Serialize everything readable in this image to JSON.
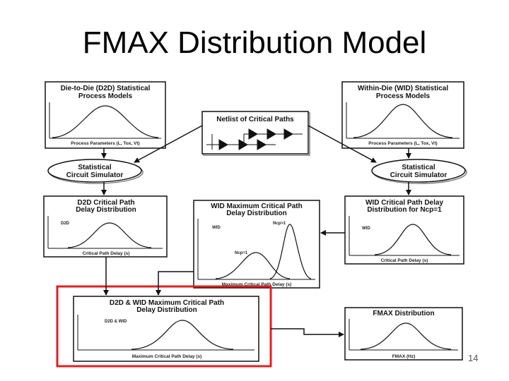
{
  "slide": {
    "title": "FMAX Distribution Model",
    "page_number": "14",
    "highlight_color": "#e02020"
  },
  "boxes": {
    "d2d_models": {
      "title1": "Die-to-Die (D2D) Statistical",
      "title2": "Process Models",
      "xlabel": "Process Parameters (L, Tox, Vt)"
    },
    "wid_models": {
      "title1": "Within-Die (WID) Statistical",
      "title2": "Process Models",
      "xlabel": "Process Parameters (L, Tox, Vt)"
    },
    "netlist": {
      "title": "Netlist of Critical Paths"
    },
    "sim_left": {
      "line1": "Statistical",
      "line2": "Circuit Simulator"
    },
    "sim_right": {
      "line1": "Statistical",
      "line2": "Circuit Simulator"
    },
    "d2d_delay": {
      "title1": "D2D Critical Path",
      "title2": "Delay Distribution",
      "ylabel": "D2D",
      "xlabel": "Critical Path Delay (s)"
    },
    "wid_max": {
      "title1": "WID Maximum Critical Path",
      "title2": "Delay Distribution",
      "ylabel": "WID",
      "tag_high": "Ncp>1",
      "tag_one": "Ncp=1",
      "xlabel": "Maximum Critical Path Delay (s)"
    },
    "wid_delay": {
      "title1": "WID Critical Path Delay",
      "title2": "Distribution for Ncp=1",
      "ylabel": "WID",
      "xlabel": "Critical Path Delay (s)"
    },
    "combined": {
      "title1": "D2D & WID Maximum Critical Path",
      "title2": "Delay Distribution",
      "ylabel": "D2D & WID",
      "xlabel": "Maximum Critical Path Delay (s)"
    },
    "fmax": {
      "title": "FMAX Distribution",
      "xlabel": "FMAX (Hz)"
    }
  }
}
